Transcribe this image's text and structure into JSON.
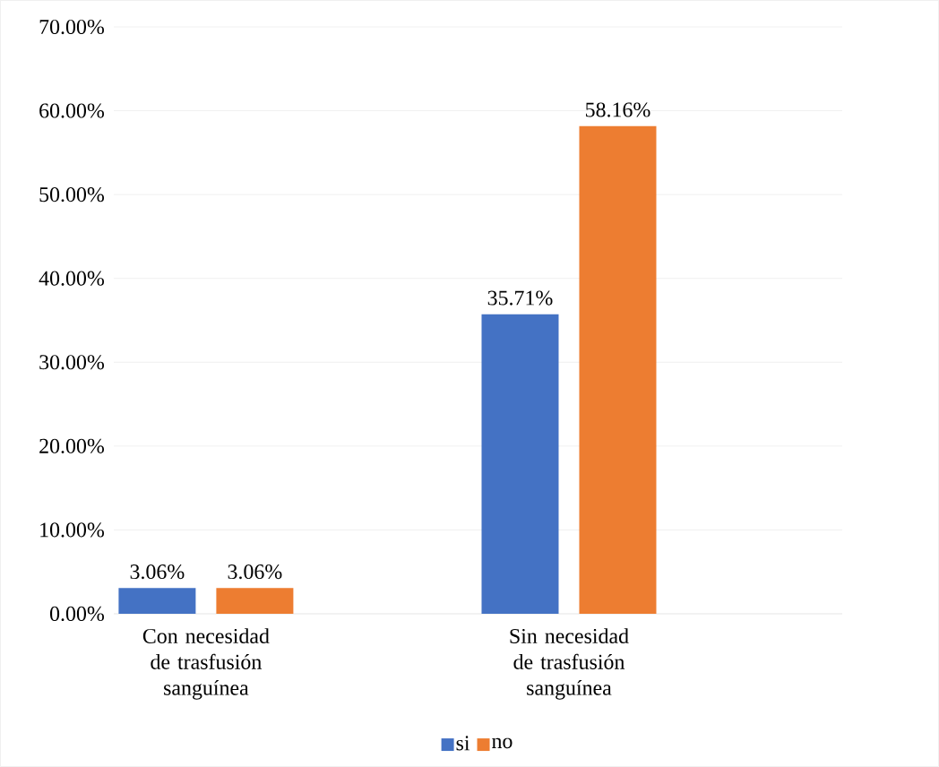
{
  "chart_data": {
    "type": "bar",
    "categories": [
      "Con necesidad de trasfusión sanguínea",
      "Sin necesidad de trasfusión sanguínea"
    ],
    "series": [
      {
        "name": "si",
        "color": "#4472c4",
        "values": [
          3.06,
          35.71
        ],
        "value_labels": [
          "3.06%",
          "35.71%"
        ]
      },
      {
        "name": "no",
        "color": "#ed7d31",
        "values": [
          3.06,
          58.16
        ],
        "value_labels": [
          "3.06%",
          "58.16%"
        ]
      }
    ],
    "ylim": [
      0,
      70
    ],
    "yticks": [
      {
        "value": 0,
        "label": "0.00%"
      },
      {
        "value": 10,
        "label": "10.00%"
      },
      {
        "value": 20,
        "label": "20.00%"
      },
      {
        "value": 30,
        "label": "30.00%"
      },
      {
        "value": 40,
        "label": "40.00%"
      },
      {
        "value": 50,
        "label": "50.00%"
      },
      {
        "value": 60,
        "label": "60.00%"
      },
      {
        "value": 70,
        "label": "70.00%"
      }
    ],
    "grid": "y",
    "legend": "bottom"
  }
}
